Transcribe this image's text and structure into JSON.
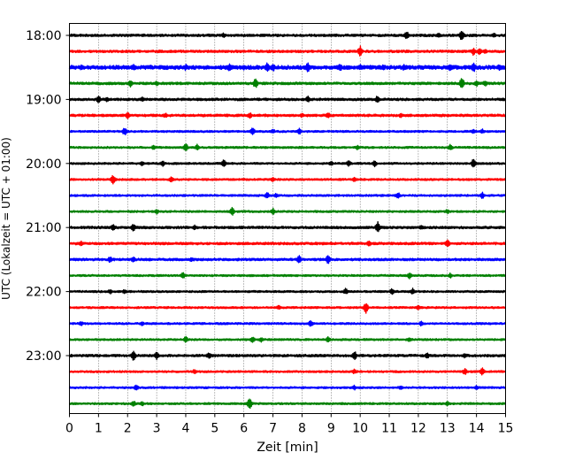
{
  "chart_data": {
    "type": "line",
    "subtype": "helicorder-seismogram",
    "title": "",
    "xlabel": "Zeit  [min]",
    "ylabel": "UTC (Lokalzeit = UTC + 01:00)",
    "xlim": [
      0,
      15
    ],
    "x_ticks": [
      "0",
      "1",
      "2",
      "3",
      "4",
      "5",
      "6",
      "7",
      "8",
      "9",
      "10",
      "11",
      "12",
      "13",
      "14",
      "15"
    ],
    "y_tick_labels": [
      {
        "label": "18:00",
        "trace_index": 0
      },
      {
        "label": "19:00",
        "trace_index": 4
      },
      {
        "label": "20:00",
        "trace_index": 8
      },
      {
        "label": "21:00",
        "trace_index": 12
      },
      {
        "label": "22:00",
        "trace_index": 16
      },
      {
        "label": "23:00",
        "trace_index": 20
      }
    ],
    "grid": "vertical dotted at each minute",
    "trace_colors": [
      "#000000",
      "#ff0000",
      "#0000ff",
      "#008000"
    ],
    "noise_amplitude": [
      1.0,
      1.0,
      1.6,
      1.0,
      1.0,
      1.0,
      0.8,
      0.8,
      0.8,
      0.8,
      0.8,
      0.8,
      1.0,
      1.0,
      1.0,
      0.8,
      0.8,
      0.8,
      0.8,
      0.8,
      1.0,
      0.8,
      0.8,
      0.8
    ],
    "traces": [
      {
        "start": "18:00",
        "events": [
          [
            5.3,
            3
          ],
          [
            11.6,
            5
          ],
          [
            12.7,
            3
          ],
          [
            13.5,
            7
          ],
          [
            14.6,
            3
          ]
        ]
      },
      {
        "start": "18:15",
        "events": [
          [
            10.0,
            7
          ],
          [
            13.9,
            5
          ],
          [
            14.1,
            4
          ],
          [
            14.3,
            3
          ]
        ]
      },
      {
        "start": "18:30",
        "events": [
          [
            0.4,
            3
          ],
          [
            2.2,
            4
          ],
          [
            2.8,
            3
          ],
          [
            4.0,
            4
          ],
          [
            5.5,
            5
          ],
          [
            6.0,
            3
          ],
          [
            6.8,
            6
          ],
          [
            7.0,
            5
          ],
          [
            8.2,
            6
          ],
          [
            9.3,
            5
          ],
          [
            10.0,
            4
          ],
          [
            10.8,
            4
          ],
          [
            11.5,
            4
          ],
          [
            13.1,
            5
          ],
          [
            13.9,
            6
          ],
          [
            14.8,
            4
          ]
        ]
      },
      {
        "start": "18:45",
        "events": [
          [
            2.1,
            4
          ],
          [
            3.0,
            3
          ],
          [
            6.4,
            6
          ],
          [
            13.5,
            7
          ],
          [
            14.0,
            4
          ],
          [
            14.3,
            4
          ]
        ]
      },
      {
        "start": "19:00",
        "events": [
          [
            1.0,
            5
          ],
          [
            1.3,
            3
          ],
          [
            2.5,
            3
          ],
          [
            8.2,
            4
          ],
          [
            10.6,
            5
          ]
        ]
      },
      {
        "start": "19:15",
        "events": [
          [
            2.0,
            4
          ],
          [
            3.3,
            3
          ],
          [
            6.2,
            4
          ],
          [
            8.0,
            3
          ],
          [
            8.9,
            4
          ],
          [
            11.4,
            3
          ]
        ]
      },
      {
        "start": "19:30",
        "events": [
          [
            1.9,
            5
          ],
          [
            6.3,
            5
          ],
          [
            7.0,
            3
          ],
          [
            7.9,
            4
          ],
          [
            13.9,
            3
          ],
          [
            14.2,
            3
          ]
        ]
      },
      {
        "start": "19:45",
        "events": [
          [
            2.9,
            3
          ],
          [
            4.0,
            5
          ],
          [
            4.4,
            4
          ],
          [
            9.9,
            3
          ],
          [
            13.1,
            4
          ]
        ]
      },
      {
        "start": "20:00",
        "events": [
          [
            2.5,
            3
          ],
          [
            3.2,
            4
          ],
          [
            5.3,
            5
          ],
          [
            9.0,
            3
          ],
          [
            9.6,
            4
          ],
          [
            10.5,
            4
          ],
          [
            13.9,
            6
          ]
        ]
      },
      {
        "start": "20:15",
        "events": [
          [
            1.5,
            6
          ],
          [
            3.5,
            4
          ],
          [
            7.0,
            3
          ],
          [
            9.8,
            3
          ]
        ]
      },
      {
        "start": "20:30",
        "events": [
          [
            6.8,
            4
          ],
          [
            7.1,
            3
          ],
          [
            11.3,
            4
          ],
          [
            14.2,
            4
          ]
        ]
      },
      {
        "start": "20:45",
        "events": [
          [
            3.0,
            3
          ],
          [
            5.6,
            5
          ],
          [
            7.0,
            4
          ],
          [
            13.0,
            3
          ]
        ]
      },
      {
        "start": "21:00",
        "events": [
          [
            1.5,
            4
          ],
          [
            2.2,
            5
          ],
          [
            4.3,
            3
          ],
          [
            10.6,
            7
          ],
          [
            12.1,
            3
          ]
        ]
      },
      {
        "start": "21:15",
        "events": [
          [
            0.4,
            3
          ],
          [
            10.3,
            4
          ],
          [
            13.0,
            5
          ]
        ]
      },
      {
        "start": "21:30",
        "events": [
          [
            1.4,
            4
          ],
          [
            2.2,
            4
          ],
          [
            4.2,
            3
          ],
          [
            7.9,
            5
          ],
          [
            8.9,
            6
          ]
        ]
      },
      {
        "start": "21:45",
        "events": [
          [
            3.9,
            4
          ],
          [
            11.7,
            4
          ],
          [
            13.1,
            3
          ]
        ]
      },
      {
        "start": "22:00",
        "events": [
          [
            1.4,
            3
          ],
          [
            1.9,
            3
          ],
          [
            9.5,
            4
          ],
          [
            11.1,
            4
          ],
          [
            11.8,
            4
          ]
        ]
      },
      {
        "start": "22:15",
        "events": [
          [
            7.2,
            3
          ],
          [
            10.2,
            7
          ],
          [
            12.0,
            3
          ]
        ]
      },
      {
        "start": "22:30",
        "events": [
          [
            0.4,
            3
          ],
          [
            2.5,
            3
          ],
          [
            8.3,
            4
          ],
          [
            12.1,
            3
          ]
        ]
      },
      {
        "start": "22:45",
        "events": [
          [
            4.0,
            4
          ],
          [
            6.3,
            4
          ],
          [
            6.6,
            3
          ],
          [
            8.9,
            4
          ],
          [
            11.7,
            3
          ]
        ]
      },
      {
        "start": "23:00",
        "events": [
          [
            2.2,
            6
          ],
          [
            3.0,
            5
          ],
          [
            4.8,
            4
          ],
          [
            9.8,
            6
          ],
          [
            12.3,
            4
          ],
          [
            13.6,
            3
          ]
        ]
      },
      {
        "start": "23:15",
        "events": [
          [
            4.3,
            3
          ],
          [
            9.8,
            3
          ],
          [
            13.6,
            4
          ],
          [
            14.2,
            5
          ]
        ]
      },
      {
        "start": "23:30",
        "events": [
          [
            2.3,
            4
          ],
          [
            9.8,
            3
          ],
          [
            11.4,
            3
          ],
          [
            14.0,
            3
          ]
        ]
      },
      {
        "start": "23:45",
        "events": [
          [
            2.2,
            4
          ],
          [
            2.5,
            3
          ],
          [
            6.2,
            7
          ],
          [
            13.0,
            3
          ]
        ]
      }
    ]
  }
}
